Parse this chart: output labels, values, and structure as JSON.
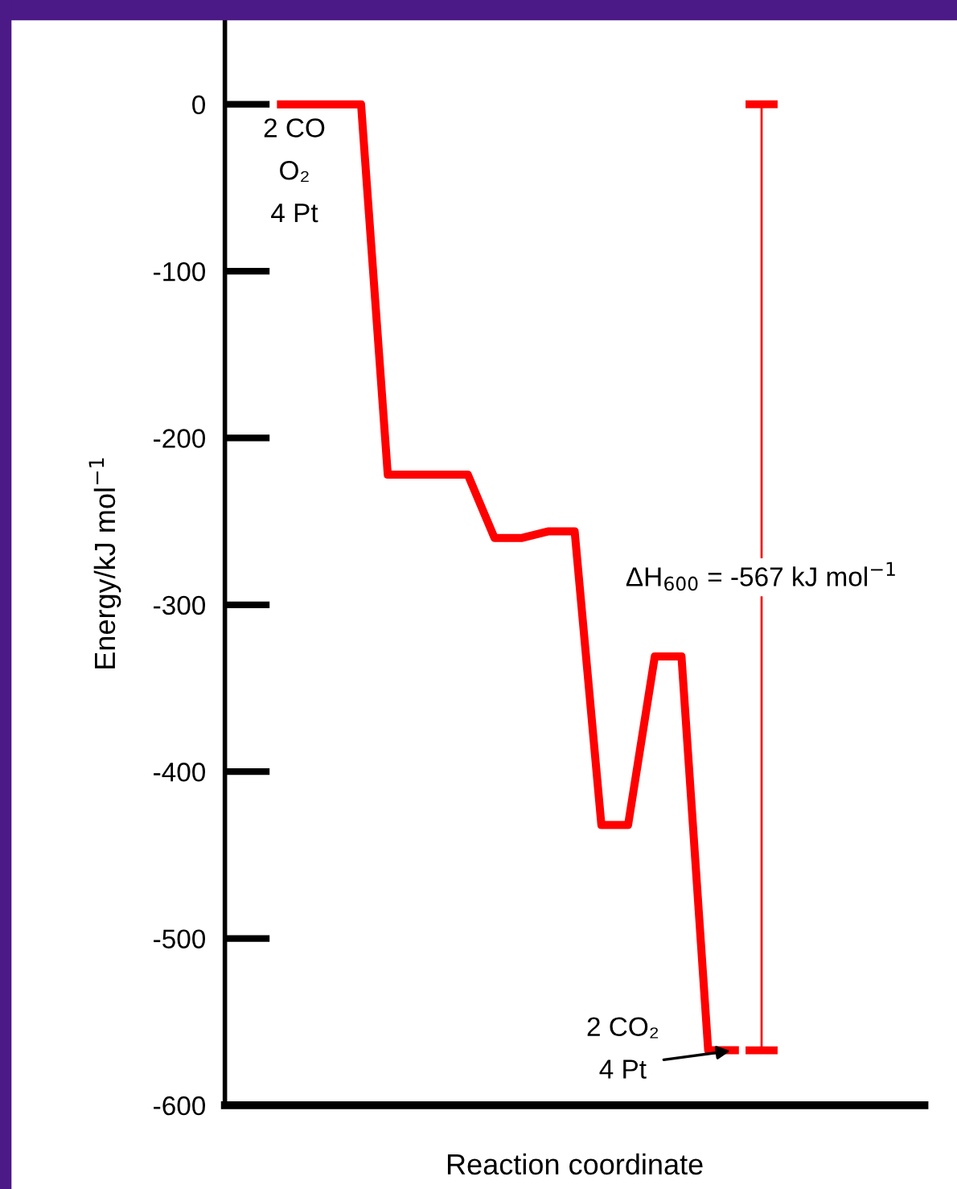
{
  "chart_data": {
    "type": "line",
    "xlabel": "Reaction coordinate",
    "ylabel": "Energy/kJ mol$^{−1}$",
    "categories": [
      null,
      null,
      null,
      null,
      null,
      null,
      null,
      null,
      null,
      null,
      null,
      null,
      null,
      null,
      null,
      null,
      null,
      null,
      null
    ],
    "series": [
      {
        "color": "#ff0000",
        "values": [
          0,
          0,
          0,
          0,
          -222,
          -222,
          -222,
          -222,
          -260,
          -260,
          -256,
          -256,
          -432,
          -432,
          -331,
          -331,
          -567,
          -567,
          null
        ]
      },
      {
        "type": "bar",
        "color": "#ff0000",
        "values": [
          null,
          null,
          null,
          null,
          null,
          null,
          null,
          null,
          null,
          null,
          null,
          null,
          null,
          null,
          null,
          null,
          null,
          null,
          -567
        ],
        "base": [
          null,
          null,
          null,
          null,
          null,
          null,
          null,
          null,
          null,
          null,
          null,
          null,
          null,
          null,
          null,
          null,
          null,
          null,
          0
        ]
      }
    ],
    "ylim": [
      -600,
      50
    ],
    "yticks": [
      0,
      -100,
      -200,
      -300,
      -400,
      -500,
      -600
    ],
    "grid": false,
    "legend": false,
    "line_style": "solid",
    "annotations": [
      "2 CO\nO₂\n4 Pt",
      "2 CO₂\n4 Pt",
      "ΔH$_{600}$ = -567 kJ mol$^{−1}$"
    ]
  }
}
